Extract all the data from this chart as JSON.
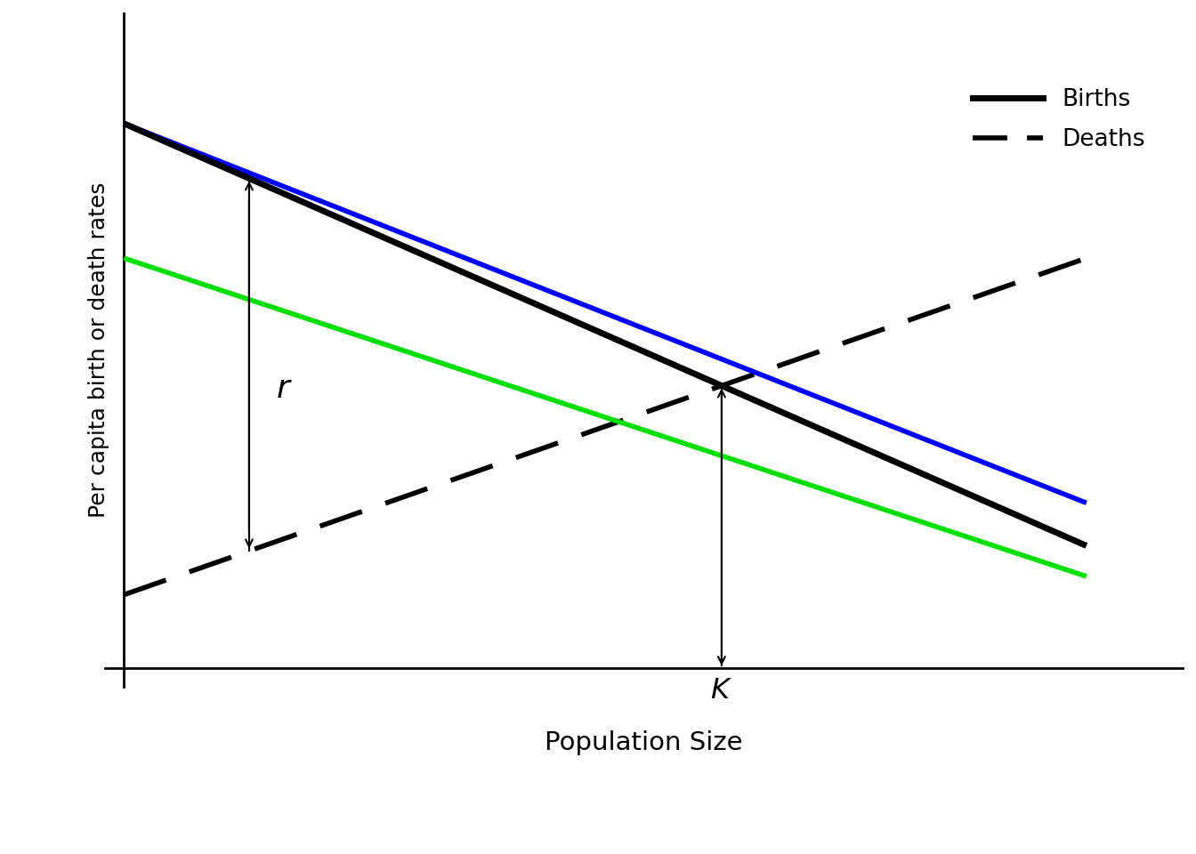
{
  "xlabel": "Population Size",
  "ylabel": "Per capita birth or death rates",
  "legend_births_label": "Births",
  "legend_deaths_label": "Deaths",
  "black_lw": 5.0,
  "blue_lw": 4.0,
  "green_lw": 4.0,
  "dashed_lw": 4.0,
  "black_color": "#000000",
  "blue_color": "#0000FF",
  "green_color": "#00DD00",
  "figsize": [
    13.44,
    9.6
  ],
  "dpi": 100,
  "black_births": [
    0,
    0.82,
    1.0,
    0.13
  ],
  "blue_births": [
    0,
    0.82,
    1.0,
    0.2
  ],
  "green_births": [
    0,
    0.6,
    1.0,
    0.08
  ],
  "deaths": [
    0,
    0.05,
    1.0,
    0.6
  ],
  "xlim": [
    -0.02,
    1.1
  ],
  "ylim": [
    -0.1,
    1.0
  ],
  "r_x": 0.13,
  "K_label": "K"
}
